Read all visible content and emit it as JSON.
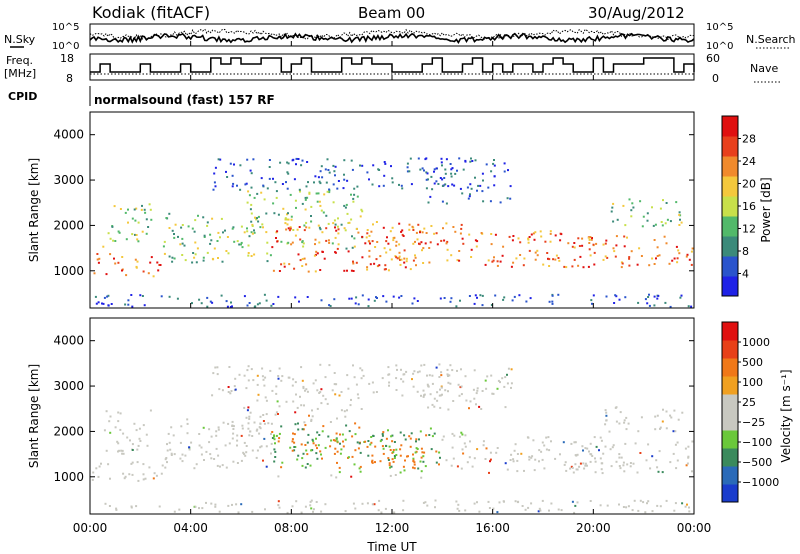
{
  "header": {
    "station": "Kodiak (fitACF)",
    "beam": "Beam 00",
    "date": "30/Aug/2012"
  },
  "noise_panel": {
    "left_label": "N.Sky",
    "right_label": "N.Search",
    "y_top_left": "10^5",
    "y_bottom_left": "10^0",
    "y_top_right": "10^5",
    "y_bottom_right": "10^0"
  },
  "freq_panel": {
    "left_label_1": "Freq.",
    "left_label_2": "[MHz]",
    "right_label": "Nave",
    "y_left_top": "18",
    "y_left_bottom": "8",
    "y_right_top": "60",
    "y_right_bottom": "0"
  },
  "cpid": {
    "label": "CPID",
    "program": "normalsound (fast) 157 RF"
  },
  "chart_data": [
    {
      "type": "heatmap",
      "title": "",
      "ylabel": "Slant Range [km]",
      "ylim": [
        180,
        4500
      ],
      "yticks": [
        "1000",
        "2000",
        "3000",
        "4000"
      ],
      "xlim": [
        "00:00",
        "24:00"
      ],
      "colorbar": {
        "label": "Power [dB]",
        "ticks": [
          "4",
          "8",
          "12",
          "16",
          "20",
          "24",
          "28"
        ],
        "colors": [
          "#1f22e6",
          "#2a54cc",
          "#3b8a7a",
          "#52b96a",
          "#c8e04a",
          "#f4c83c",
          "#f08a2c",
          "#e8401c",
          "#e01010"
        ]
      }
    },
    {
      "type": "heatmap",
      "title": "",
      "ylabel": "Slant Range [km]",
      "ylim": [
        180,
        4500
      ],
      "yticks": [
        "1000",
        "2000",
        "3000",
        "4000"
      ],
      "xlim": [
        "00:00",
        "24:00"
      ],
      "colorbar": {
        "label": "Velocity [m s⁻¹]",
        "ticks": [
          "1000",
          "500",
          "100",
          "25",
          "−25",
          "−100",
          "−500",
          "−1000"
        ],
        "colors": [
          "#1a3ccc",
          "#2a6ab8",
          "#3a8a5c",
          "#6ac83a",
          "#c8c8c0",
          "#c8c8c0",
          "#f0a020",
          "#f07818",
          "#e84018",
          "#e01010"
        ]
      }
    }
  ],
  "x_axis": {
    "label": "Time UT",
    "ticks": [
      "00:00",
      "04:00",
      "08:00",
      "12:00",
      "16:00",
      "20:00",
      "00:00"
    ]
  }
}
